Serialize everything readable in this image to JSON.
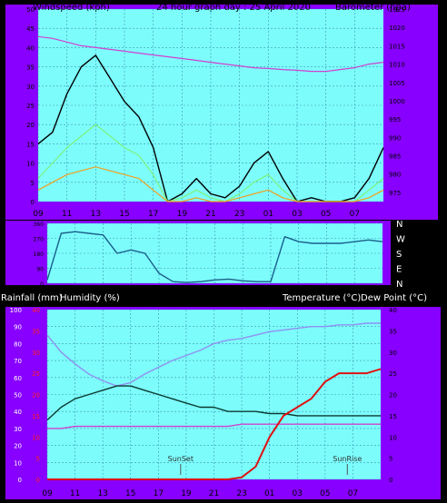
{
  "header": {
    "left": "Windspeed (kph)",
    "center": "24 hour graph day : 25 April 2020",
    "right": "Barometer (hpa)"
  },
  "bottom_header": {
    "rain": "Rainfall (mm)",
    "humidity": "Humidity (%)",
    "temperature": "Temperature (°C)",
    "dewpoint": "Dew Point (°C)"
  },
  "colors": {
    "frame": "#8800ff",
    "plot_bg": "#7dfcfc",
    "bottom_bg": "#7dfcfc",
    "grid": "#3a9ab0",
    "gust": "#000000",
    "wind_avg": "#7cf27c",
    "wind_low": "#f0a020",
    "baro": "#d040d0",
    "direction": "#1a5f8a",
    "humidity": "#9090f0",
    "temperature": "#0a3a30",
    "dewpoint": "#d040d0",
    "rain": "#e01010"
  },
  "chart_data": [
    {
      "type": "line",
      "name": "wind-barometer",
      "x_ticks": [
        "11",
        "13",
        "15",
        "17",
        "19",
        "21",
        "23",
        "01",
        "03",
        "05",
        "07",
        "09"
      ],
      "x": [
        9,
        10,
        11,
        12,
        13,
        14,
        15,
        16,
        17,
        18,
        19,
        20,
        21,
        22,
        23,
        24,
        25,
        26,
        27,
        28,
        29,
        30,
        31,
        32,
        33
      ],
      "ylim_left": [
        0,
        50
      ],
      "yticks_left": [
        "0",
        "5",
        "10",
        "15",
        "20",
        "25",
        "30",
        "35",
        "40",
        "45",
        "50"
      ],
      "ylim_right": [
        972.5,
        1025
      ],
      "yticks_right": [
        "975",
        "980",
        "985",
        "990",
        "995",
        "1000",
        "1005",
        "1010",
        "1015",
        "1020",
        "1025"
      ],
      "series": [
        {
          "key": "gust",
          "values": [
            15,
            18,
            28,
            35,
            38,
            32,
            26,
            22,
            14,
            0,
            2,
            6,
            2,
            1,
            4,
            10,
            13,
            6,
            0,
            1,
            0,
            0,
            1,
            6,
            14
          ]
        },
        {
          "key": "wind_avg",
          "values": [
            6,
            10,
            14,
            17,
            20,
            17,
            14,
            12,
            7,
            0,
            1,
            3,
            1,
            0,
            2,
            5,
            7,
            3,
            0,
            0,
            0,
            0,
            0,
            3,
            6
          ]
        },
        {
          "key": "wind_low",
          "values": [
            3,
            5,
            7,
            8,
            9,
            8,
            7,
            6,
            3,
            0,
            0,
            1,
            0,
            0,
            1,
            2,
            3,
            1,
            0,
            0,
            0,
            0,
            0,
            1,
            3
          ]
        },
        {
          "key": "barometer",
          "values": [
            1017.5,
            1017,
            1016,
            1015,
            1014.5,
            1014,
            1013.5,
            1013,
            1012.5,
            1012,
            1011.5,
            1011,
            1010.5,
            1010,
            1009.5,
            1009,
            1008.8,
            1008.5,
            1008.3,
            1008,
            1008,
            1008.5,
            1009,
            1010,
            1010.5
          ]
        }
      ]
    },
    {
      "type": "line",
      "name": "wind-direction",
      "y_ticks": [
        "N",
        "W",
        "S",
        "E",
        "N"
      ],
      "left_ticks": [
        "360",
        "270",
        "180",
        "90",
        "0"
      ],
      "ylim": [
        0,
        360
      ],
      "x": [
        9,
        10,
        11,
        12,
        13,
        14,
        15,
        16,
        17,
        18,
        19,
        20,
        21,
        22,
        23,
        24,
        25,
        26,
        27,
        28,
        29,
        30,
        31,
        32,
        33
      ],
      "values": [
        20,
        300,
        310,
        300,
        290,
        180,
        200,
        180,
        60,
        10,
        5,
        10,
        20,
        25,
        15,
        10,
        10,
        280,
        250,
        240,
        240,
        240,
        250,
        260,
        250
      ]
    },
    {
      "type": "line",
      "name": "rain-humidity-temperature",
      "x_ticks": [
        "11",
        "13",
        "15",
        "17",
        "19",
        "21",
        "23",
        "01",
        "03",
        "05",
        "07",
        "09"
      ],
      "x": [
        9,
        10,
        11,
        12,
        13,
        14,
        15,
        16,
        17,
        18,
        19,
        20,
        21,
        22,
        23,
        24,
        25,
        26,
        27,
        28,
        29,
        30,
        31,
        32,
        33
      ],
      "ylim_humidity": [
        0,
        100
      ],
      "yticks_humidity": [
        "0",
        "10",
        "20",
        "30",
        "40",
        "50",
        "60",
        "70",
        "80",
        "90",
        "100"
      ],
      "ylim_rain": [
        0,
        40
      ],
      "yticks_rain": [
        "0",
        "5",
        "10",
        "15",
        "20",
        "25",
        "30",
        "35",
        "40"
      ],
      "ylim_temp": [
        0,
        40
      ],
      "yticks_temp": [
        "0",
        "5",
        "10",
        "15",
        "20",
        "25",
        "30",
        "35",
        "40"
      ],
      "annotations": [
        "SunSet",
        "SunRise"
      ],
      "series": [
        {
          "key": "humidity",
          "values": [
            85,
            75,
            68,
            62,
            58,
            55,
            57,
            62,
            66,
            70,
            73,
            76,
            80,
            82,
            83,
            85,
            87,
            88,
            89,
            90,
            90,
            91,
            91,
            92,
            92
          ]
        },
        {
          "key": "temperature",
          "values": [
            14,
            17,
            19,
            20,
            21,
            22,
            22,
            21,
            20,
            19,
            18,
            17,
            17,
            16,
            16,
            16,
            15.5,
            15.5,
            15,
            15,
            15,
            15,
            15,
            15,
            15
          ]
        },
        {
          "key": "dewpoint",
          "values": [
            12,
            12,
            12.5,
            12.5,
            12.5,
            12.5,
            12.5,
            12.5,
            12.5,
            12.5,
            12.5,
            12.5,
            12.5,
            12.5,
            13,
            13,
            13,
            13,
            13,
            13,
            13,
            13,
            13,
            13,
            13
          ]
        },
        {
          "key": "rain",
          "values": [
            0,
            0,
            0,
            0,
            0,
            0,
            0,
            0,
            0,
            0,
            0,
            0,
            0,
            0,
            0.5,
            3,
            10,
            15,
            17,
            19,
            23,
            25,
            25,
            25,
            26
          ]
        }
      ]
    }
  ]
}
